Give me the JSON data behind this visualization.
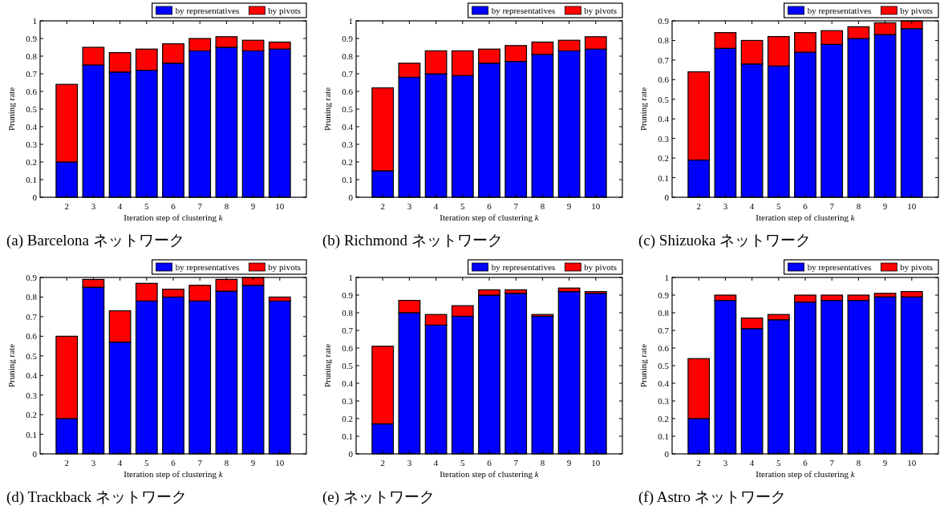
{
  "chart_data": [
    {
      "type": "bar",
      "title": "(a) Barcelona ネットワーク",
      "xlabel": "Iteration step of clustering *k*",
      "ylabel": "Pruning rate",
      "categories": [
        "2",
        "3",
        "4",
        "5",
        "6",
        "7",
        "8",
        "9",
        "10"
      ],
      "stacked": true,
      "legend": "top",
      "ylim": [
        0,
        1
      ],
      "yticks": [
        0,
        0.1,
        0.2,
        0.3,
        0.4,
        0.5,
        0.6,
        0.7,
        0.8,
        0.9,
        1
      ],
      "series": [
        {
          "name": "by representatives",
          "color": "#0000ff",
          "values": [
            0.2,
            0.75,
            0.71,
            0.72,
            0.76,
            0.83,
            0.85,
            0.83,
            0.84
          ]
        },
        {
          "name": "by pivots",
          "color": "#ff0000",
          "values": [
            0.44,
            0.1,
            0.11,
            0.12,
            0.11,
            0.07,
            0.06,
            0.06,
            0.04
          ]
        }
      ]
    },
    {
      "type": "bar",
      "title": "(b) Richmond ネットワーク",
      "xlabel": "Iteration step of clustering *k*",
      "ylabel": "Pruning rate",
      "categories": [
        "2",
        "3",
        "4",
        "5",
        "6",
        "7",
        "8",
        "9",
        "10"
      ],
      "stacked": true,
      "legend": "top",
      "ylim": [
        0,
        1
      ],
      "yticks": [
        0,
        0.1,
        0.2,
        0.3,
        0.4,
        0.5,
        0.6,
        0.7,
        0.8,
        0.9,
        1
      ],
      "series": [
        {
          "name": "by representatives",
          "color": "#0000ff",
          "values": [
            0.15,
            0.68,
            0.7,
            0.69,
            0.76,
            0.77,
            0.81,
            0.83,
            0.84
          ]
        },
        {
          "name": "by pivots",
          "color": "#ff0000",
          "values": [
            0.47,
            0.08,
            0.13,
            0.14,
            0.08,
            0.09,
            0.07,
            0.06,
            0.07
          ]
        }
      ]
    },
    {
      "type": "bar",
      "title": "(c) Shizuoka ネットワーク",
      "xlabel": "Iteration step of clustering *k*",
      "ylabel": "Pruning rate",
      "categories": [
        "2",
        "3",
        "4",
        "5",
        "6",
        "7",
        "8",
        "9",
        "10"
      ],
      "stacked": true,
      "legend": "top",
      "ylim": [
        0,
        0.9
      ],
      "yticks": [
        0,
        0.1,
        0.2,
        0.3,
        0.4,
        0.5,
        0.6,
        0.7,
        0.8,
        0.9
      ],
      "series": [
        {
          "name": "by representatives",
          "color": "#0000ff",
          "values": [
            0.19,
            0.76,
            0.68,
            0.67,
            0.74,
            0.78,
            0.81,
            0.83,
            0.86
          ]
        },
        {
          "name": "by pivots",
          "color": "#ff0000",
          "values": [
            0.45,
            0.08,
            0.12,
            0.15,
            0.1,
            0.07,
            0.06,
            0.06,
            0.04
          ]
        }
      ]
    },
    {
      "type": "bar",
      "title": "(d) Trackback ネットワーク",
      "xlabel": "Iteration step of clustering *k*",
      "ylabel": "Pruning rate",
      "categories": [
        "2",
        "3",
        "4",
        "5",
        "6",
        "7",
        "8",
        "9",
        "10"
      ],
      "stacked": true,
      "legend": "top",
      "ylim": [
        0,
        0.9
      ],
      "yticks": [
        0,
        0.1,
        0.2,
        0.3,
        0.4,
        0.5,
        0.6,
        0.7,
        0.8,
        0.9
      ],
      "series": [
        {
          "name": "by representatives",
          "color": "#0000ff",
          "values": [
            0.18,
            0.85,
            0.57,
            0.78,
            0.8,
            0.78,
            0.83,
            0.86,
            0.78
          ]
        },
        {
          "name": "by pivots",
          "color": "#ff0000",
          "values": [
            0.42,
            0.04,
            0.16,
            0.09,
            0.04,
            0.08,
            0.06,
            0.04,
            0.02
          ]
        }
      ]
    },
    {
      "type": "bar",
      "title": "(e) ネットワーク",
      "xlabel": "Iteration step of clustering *k*",
      "ylabel": "Pruning rate",
      "categories": [
        "2",
        "3",
        "4",
        "5",
        "6",
        "7",
        "8",
        "9",
        "10"
      ],
      "stacked": true,
      "legend": "top",
      "ylim": [
        0,
        1
      ],
      "yticks": [
        0,
        0.1,
        0.2,
        0.3,
        0.4,
        0.5,
        0.6,
        0.7,
        0.8,
        0.9,
        1
      ],
      "series": [
        {
          "name": "by representatives",
          "color": "#0000ff",
          "values": [
            0.17,
            0.8,
            0.73,
            0.78,
            0.9,
            0.91,
            0.78,
            0.92,
            0.91
          ]
        },
        {
          "name": "by pivots",
          "color": "#ff0000",
          "values": [
            0.44,
            0.07,
            0.06,
            0.06,
            0.03,
            0.02,
            0.01,
            0.02,
            0.01
          ]
        }
      ]
    },
    {
      "type": "bar",
      "title": "(f) Astro ネットワーク",
      "xlabel": "Iteration step of clustering *k*",
      "ylabel": "Pruning rate",
      "categories": [
        "2",
        "3",
        "4",
        "5",
        "6",
        "7",
        "8",
        "9",
        "10"
      ],
      "stacked": true,
      "legend": "top",
      "ylim": [
        0,
        1
      ],
      "yticks": [
        0,
        0.1,
        0.2,
        0.3,
        0.4,
        0.5,
        0.6,
        0.7,
        0.8,
        0.9,
        1
      ],
      "series": [
        {
          "name": "by representatives",
          "color": "#0000ff",
          "values": [
            0.2,
            0.87,
            0.71,
            0.76,
            0.86,
            0.87,
            0.87,
            0.89,
            0.89
          ]
        },
        {
          "name": "by pivots",
          "color": "#ff0000",
          "values": [
            0.34,
            0.03,
            0.06,
            0.03,
            0.04,
            0.03,
            0.03,
            0.02,
            0.03
          ]
        }
      ]
    }
  ]
}
